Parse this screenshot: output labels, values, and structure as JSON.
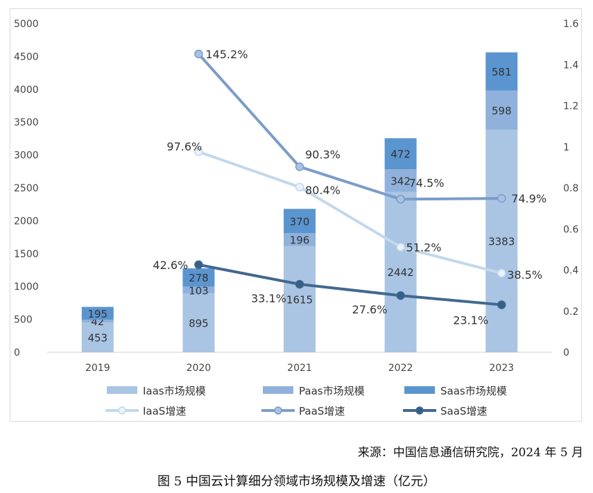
{
  "chart_data": {
    "type": "bar",
    "categories": [
      "2019",
      "2020",
      "2021",
      "2022",
      "2023"
    ],
    "ylim": [
      0,
      5000
    ],
    "y_ticks": [
      0,
      500,
      1000,
      1500,
      2000,
      2500,
      3000,
      3500,
      4000,
      4500,
      5000
    ],
    "y2lim": [
      0,
      1.6
    ],
    "y2_ticks": [
      "0",
      "0.2",
      "0.4",
      "0.6",
      "0.8",
      "1",
      "1.2",
      "1.4",
      "1.6"
    ],
    "stacked": true,
    "grid": false,
    "legend_position": "bottom",
    "bar_series": [
      {
        "name": "Iaas市场规模",
        "color": "#aac4e3",
        "values": [
          453,
          895,
          1615,
          2442,
          3383
        ]
      },
      {
        "name": "Paas市场规模",
        "color": "#8fb1db",
        "values": [
          42,
          103,
          196,
          342,
          598
        ]
      },
      {
        "name": "Saas市场规模",
        "color": "#5b95d0",
        "values": [
          195,
          278,
          370,
          472,
          581
        ]
      }
    ],
    "line_series": [
      {
        "name": "IaaS增速",
        "color": "#c2d8ec",
        "marker_fill": "#eaf2fa",
        "values": [
          null,
          0.976,
          0.804,
          0.512,
          0.385
        ],
        "labels": [
          null,
          "97.6%",
          "80.4%",
          "51.2%",
          "38.5%"
        ]
      },
      {
        "name": "PaaS增速",
        "color": "#7b9cc8",
        "marker_fill": "#a9c2e2",
        "values": [
          null,
          1.452,
          0.903,
          0.745,
          0.749
        ],
        "labels": [
          null,
          "145.2%",
          "90.3%",
          "74.5%",
          "74.9%"
        ]
      },
      {
        "name": "SaaS增速",
        "color": "#41688f",
        "marker_fill": "#355f86",
        "values": [
          null,
          0.426,
          0.331,
          0.276,
          0.231
        ],
        "labels": [
          null,
          "42.6%",
          "33.1%",
          "27.6%",
          "23.1%"
        ]
      }
    ]
  },
  "source_text": "来源：中国信息通信研究院，2024 年 5 月",
  "caption_text": "图 5  中国云计算细分领域市场规模及增速（亿元）"
}
